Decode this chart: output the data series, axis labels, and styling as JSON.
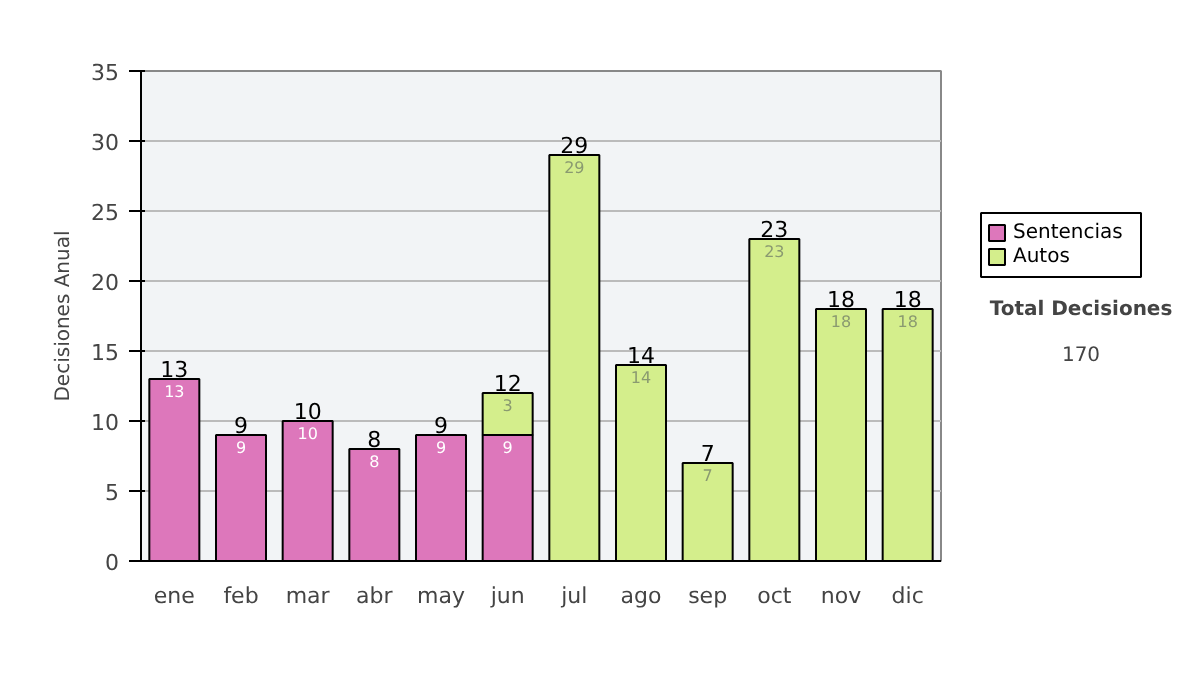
{
  "chart_data": {
    "type": "bar",
    "stacked": true,
    "ylabel": "Decisiones Anual",
    "categories": [
      "ene",
      "feb",
      "mar",
      "abr",
      "may",
      "jun",
      "jul",
      "ago",
      "sep",
      "oct",
      "nov",
      "dic"
    ],
    "series": [
      {
        "name": "Sentencias",
        "color": "#dd77bb",
        "values": [
          13,
          9,
          10,
          8,
          9,
          9,
          null,
          null,
          null,
          null,
          null,
          null
        ]
      },
      {
        "name": "Autos",
        "color": "#d4ee8c",
        "values": [
          null,
          null,
          null,
          null,
          null,
          3,
          29,
          14,
          7,
          23,
          18,
          18
        ]
      }
    ],
    "totals": [
      "13",
      "9",
      "10",
      "8",
      "9",
      "12",
      "29",
      "14",
      "7",
      "23",
      "18",
      "18"
    ],
    "data_labels": true,
    "ylim": [
      0,
      35
    ],
    "yticks": [
      0,
      5,
      10,
      15,
      20,
      25,
      30,
      35
    ],
    "grid": "y",
    "legend": "right",
    "annotations": [
      "Total Decisiones",
      "170"
    ]
  }
}
